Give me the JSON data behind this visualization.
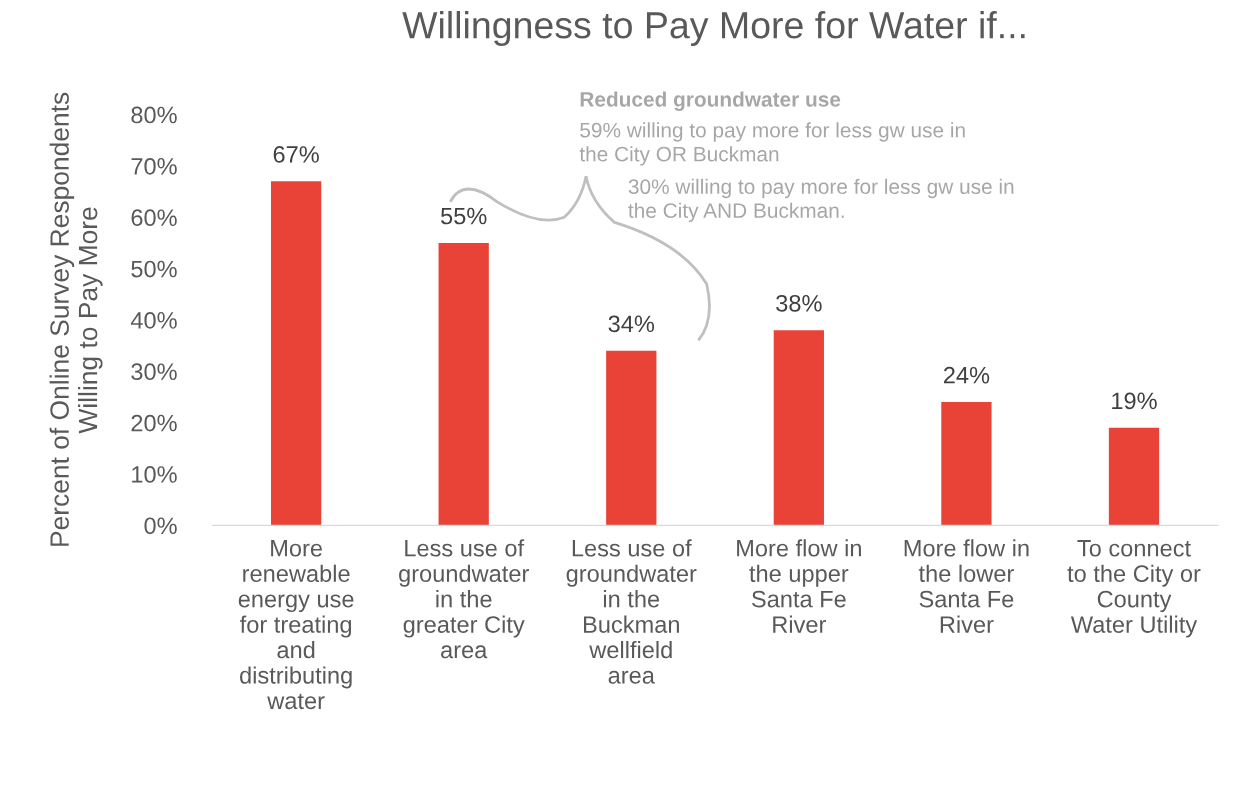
{
  "chart_data": {
    "type": "bar",
    "title": "Willingness to Pay More for Water if...",
    "ylabel": "Percent of Online Survey Respondents\nWilling to Pay More",
    "categories": [
      "More\nrenewable\nenergy use\nfor treating\nand\ndistributing\nwater",
      "Less use of\ngroundwater\nin the\ngreater City\narea",
      "Less use of\ngroundwater\nin the\nBuckman\nwellfield\narea",
      "More flow in\nthe upper\nSanta Fe\nRiver",
      "More flow in\nthe lower\nSanta Fe\nRiver",
      "To connect\nto the City or\nCounty\nWater Utility"
    ],
    "values": [
      67,
      55,
      34,
      38,
      24,
      19
    ],
    "value_labels": [
      "67%",
      "55%",
      "34%",
      "38%",
      "24%",
      "19%"
    ],
    "color": "#e84336",
    "ylim": [
      0,
      80
    ],
    "yticks": [
      {
        "value": 0,
        "label": "0%"
      },
      {
        "value": 10,
        "label": "10%"
      },
      {
        "value": 20,
        "label": "20%"
      },
      {
        "value": 30,
        "label": "30%"
      },
      {
        "value": 40,
        "label": "40%"
      },
      {
        "value": 50,
        "label": "50%"
      },
      {
        "value": 60,
        "label": "60%"
      },
      {
        "value": 70,
        "label": "70%"
      },
      {
        "value": 80,
        "label": "80%"
      }
    ],
    "grid": false,
    "annotations": [
      "Reduced groundwater use",
      "59% willing to pay more for less gw use in\nthe City OR Buckman",
      "30% willing to pay more for less gw use in\nthe City AND Buckman."
    ]
  }
}
